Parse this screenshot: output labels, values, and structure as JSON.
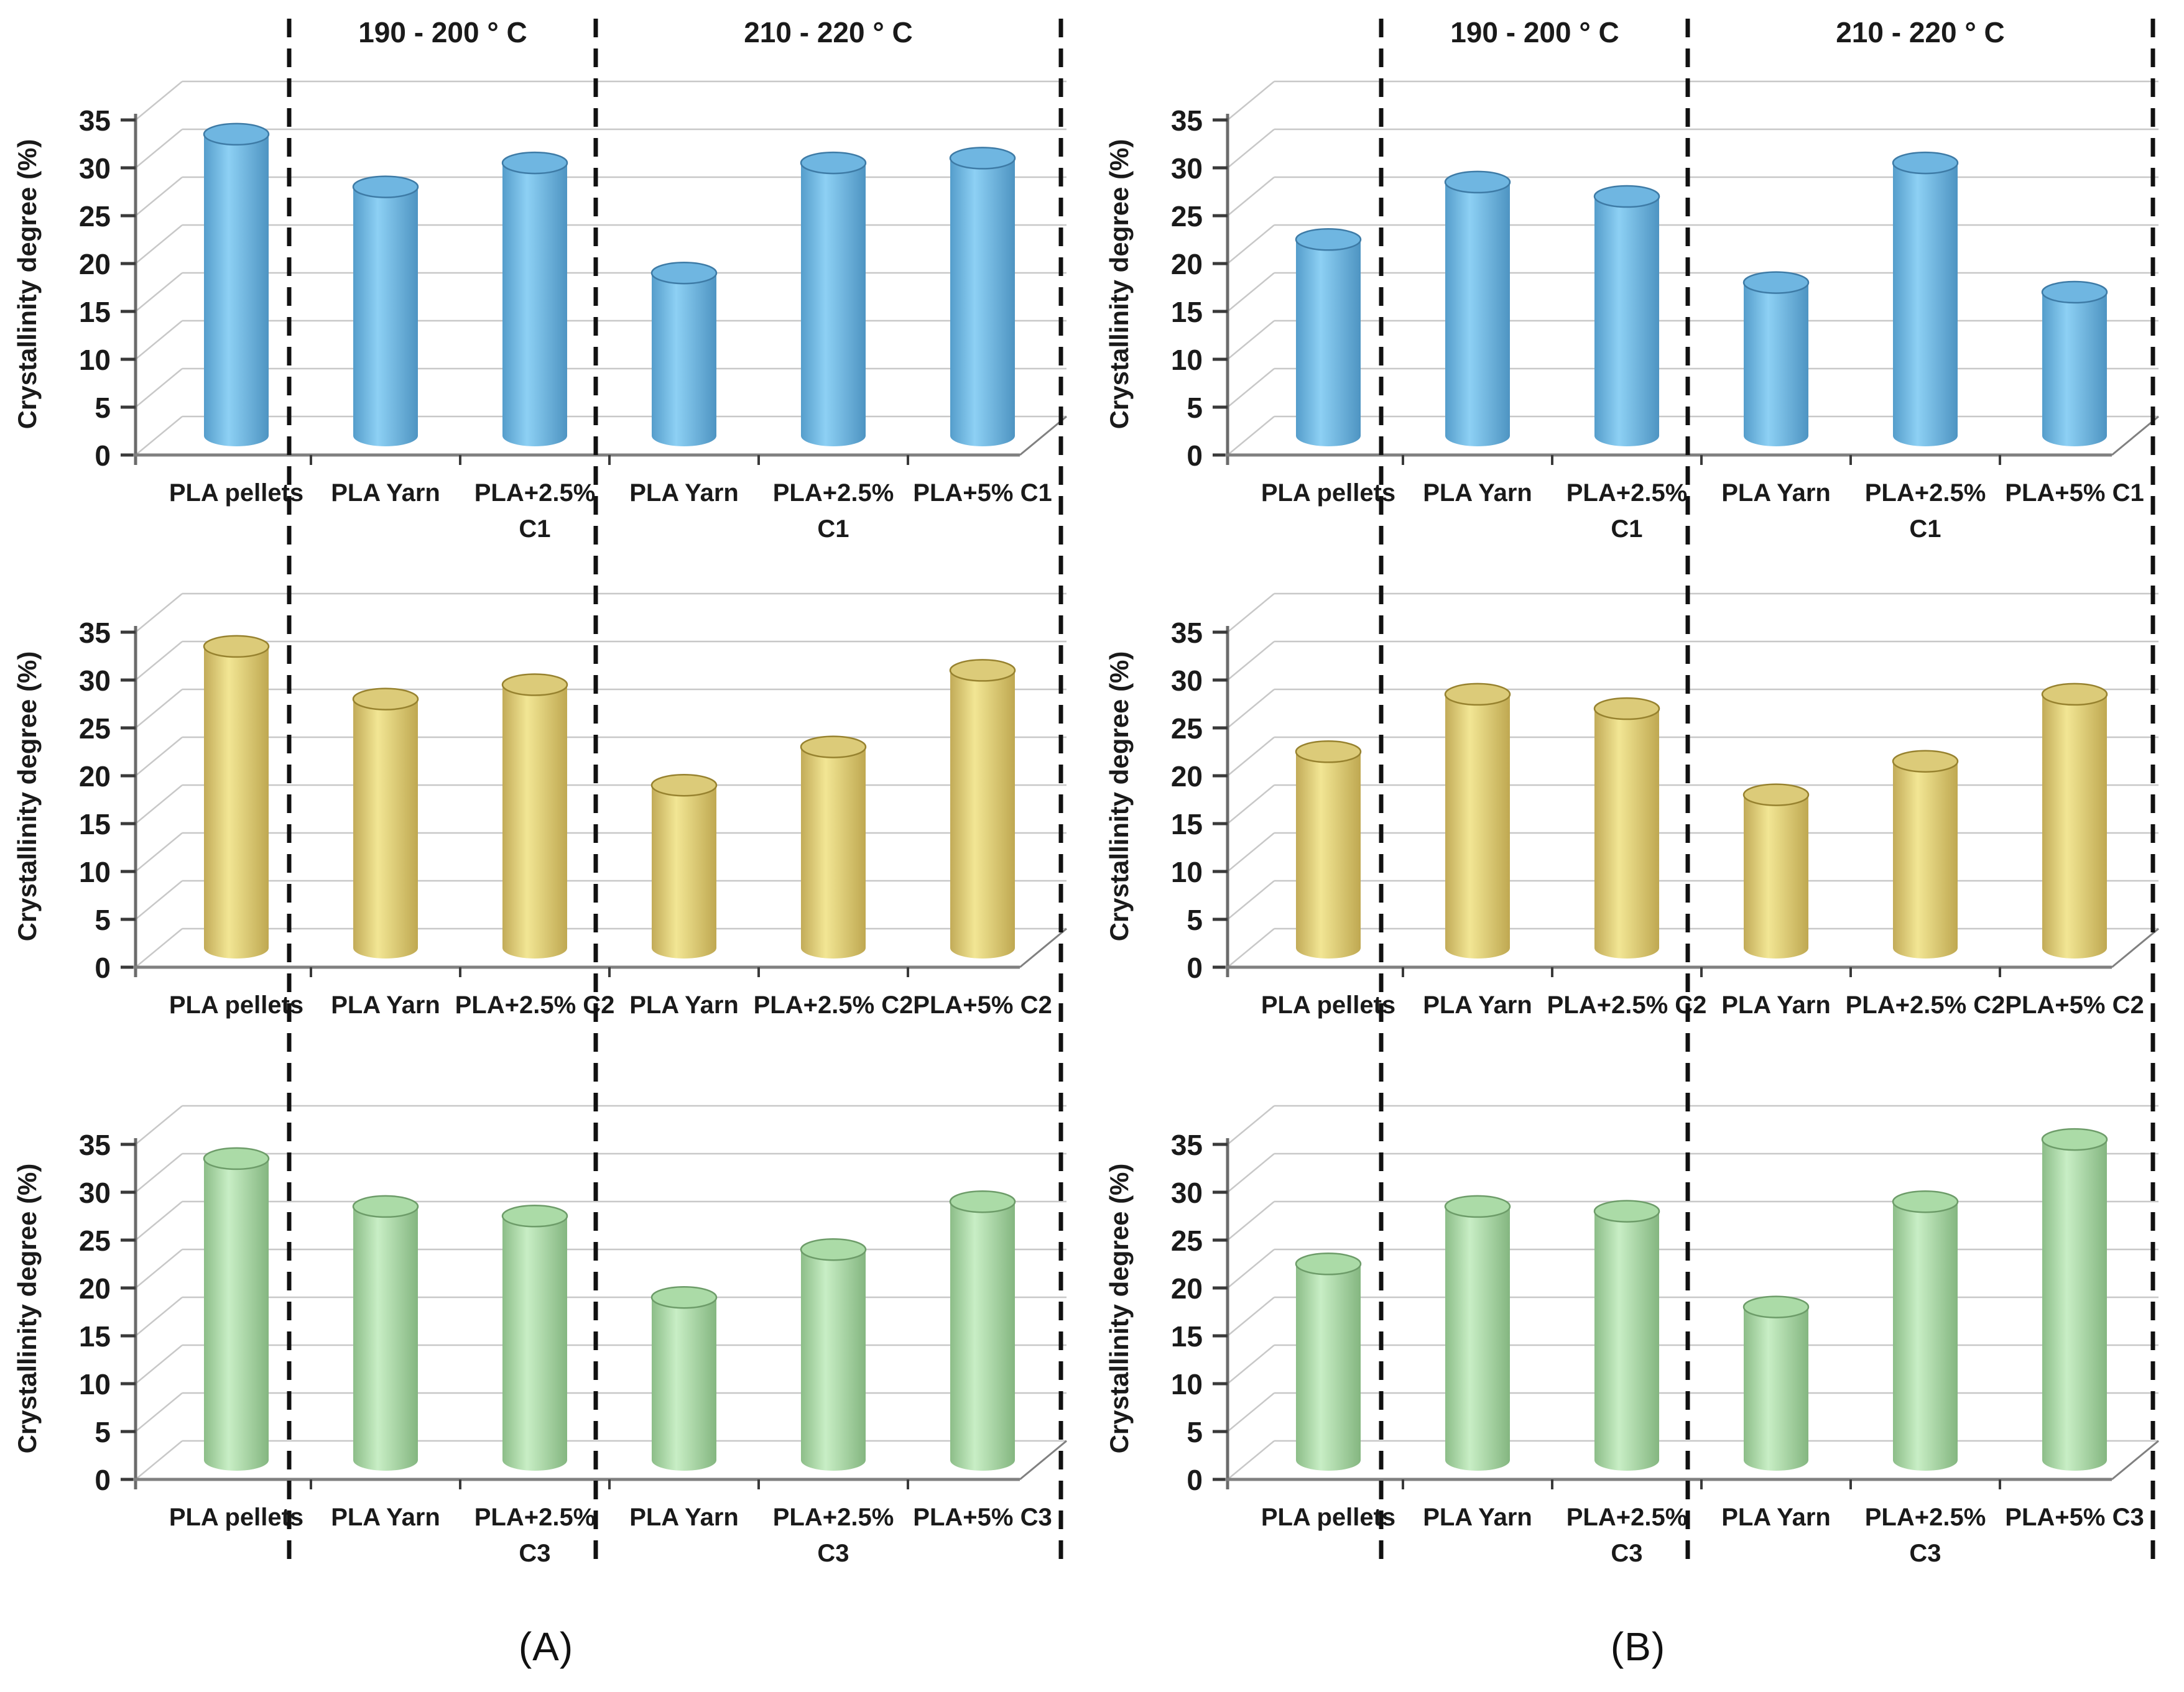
{
  "figure": {
    "caption_a": "(A)",
    "caption_b": "(B)",
    "y_axis_label": "Crystallinity degree (%)",
    "temp_headers": [
      "190 - 200 ° C",
      "210 - 220 ° C"
    ],
    "background": "#FFFFFF"
  },
  "colors": {
    "separator_line": "#111111",
    "gridline": "#C8C8C8",
    "axis_line": "#6B6B6B",
    "baseline": "#808080",
    "tick": "#3A3A3A",
    "text": "#1A1A1A",
    "blue": {
      "edge1": "#559DCB",
      "light": "#8DD0F4",
      "edge2": "#4E94C2",
      "top": "#6FB6E1",
      "top_stroke": "#3E7BA6"
    },
    "yellow": {
      "edge1": "#C2AB58",
      "light": "#F2E694",
      "edge2": "#BFA851",
      "top": "#DCCB79",
      "top_stroke": "#97822F"
    },
    "green": {
      "edge1": "#8CBD88",
      "light": "#C8EEC5",
      "edge2": "#84B680",
      "top": "#ABDBA7",
      "top_stroke": "#6D9C69"
    }
  },
  "chart_data": [
    {
      "type": "bar",
      "bar_style": "3d-cylinder",
      "panel": "A",
      "position": "top-left",
      "color_scheme": "blue",
      "ylabel": "Crystallinity degree (%)",
      "yticks": [
        0,
        5,
        10,
        15,
        20,
        25,
        30,
        35
      ],
      "ylim": [
        0,
        35
      ],
      "group_headers": [
        "190 - 200 ° C",
        "210 - 220 ° C"
      ],
      "categories": [
        [
          "PLA pellets"
        ],
        [
          "PLA Yarn"
        ],
        [
          "PLA+2.5%",
          "C1"
        ],
        [
          "PLA Yarn"
        ],
        [
          "PLA+2.5%",
          "C1"
        ],
        [
          "PLA+5% C1"
        ]
      ],
      "values": [
        31.5,
        26,
        28.5,
        17,
        28.5,
        29
      ]
    },
    {
      "type": "bar",
      "bar_style": "3d-cylinder",
      "panel": "B",
      "position": "top-right",
      "color_scheme": "blue",
      "ylabel": "Crystallinity degree (%)",
      "yticks": [
        0,
        5,
        10,
        15,
        20,
        25,
        30,
        35
      ],
      "ylim": [
        0,
        35
      ],
      "group_headers": [
        "190 - 200 ° C",
        "210 - 220 ° C"
      ],
      "categories": [
        [
          "PLA pellets"
        ],
        [
          "PLA Yarn"
        ],
        [
          "PLA+2.5%",
          "C1"
        ],
        [
          "PLA Yarn"
        ],
        [
          "PLA+2.5%",
          "C1"
        ],
        [
          "PLA+5% C1"
        ]
      ],
      "values": [
        20.5,
        26.5,
        25,
        16,
        28.5,
        15
      ]
    },
    {
      "type": "bar",
      "bar_style": "3d-cylinder",
      "panel": "A",
      "position": "middle-left",
      "color_scheme": "yellow",
      "ylabel": "Crystallinity degree (%)",
      "yticks": [
        0,
        5,
        10,
        15,
        20,
        25,
        30,
        35
      ],
      "ylim": [
        0,
        35
      ],
      "group_headers": [
        "190 - 200 ° C",
        "210 - 220 ° C"
      ],
      "categories": [
        [
          "PLA pellets"
        ],
        [
          "PLA Yarn"
        ],
        [
          "PLA+2.5% C2"
        ],
        [
          "PLA Yarn"
        ],
        [
          "PLA+2.5% C2"
        ],
        [
          "PLA+5% C2"
        ]
      ],
      "values": [
        31.5,
        26,
        27.5,
        17,
        21,
        29
      ]
    },
    {
      "type": "bar",
      "bar_style": "3d-cylinder",
      "panel": "B",
      "position": "middle-right",
      "color_scheme": "yellow",
      "ylabel": "Crystallinity degree (%)",
      "yticks": [
        0,
        5,
        10,
        15,
        20,
        25,
        30,
        35
      ],
      "ylim": [
        0,
        35
      ],
      "group_headers": [
        "190 - 200 ° C",
        "210 - 220 ° C"
      ],
      "categories": [
        [
          "PLA pellets"
        ],
        [
          "PLA Yarn"
        ],
        [
          "PLA+2.5% C2"
        ],
        [
          "PLA Yarn"
        ],
        [
          "PLA+2.5% C2"
        ],
        [
          "PLA+5% C2"
        ]
      ],
      "values": [
        20.5,
        26.5,
        25,
        16,
        19.5,
        26.5
      ]
    },
    {
      "type": "bar",
      "bar_style": "3d-cylinder",
      "panel": "A",
      "position": "bottom-left",
      "color_scheme": "green",
      "ylabel": "Crystallinity degree (%)",
      "yticks": [
        0,
        5,
        10,
        15,
        20,
        25,
        30,
        35
      ],
      "ylim": [
        0,
        35
      ],
      "group_headers": [
        "190 - 200 ° C",
        "210 - 220 ° C"
      ],
      "categories": [
        [
          "PLA pellets"
        ],
        [
          "PLA Yarn"
        ],
        [
          "PLA+2.5%",
          "C3"
        ],
        [
          "PLA Yarn"
        ],
        [
          "PLA+2.5%",
          "C3"
        ],
        [
          "PLA+5% C3"
        ]
      ],
      "values": [
        31.5,
        26.5,
        25.5,
        17,
        22,
        27
      ]
    },
    {
      "type": "bar",
      "bar_style": "3d-cylinder",
      "panel": "B",
      "position": "bottom-right",
      "color_scheme": "green",
      "ylabel": "Crystallinity degree (%)",
      "yticks": [
        0,
        5,
        10,
        15,
        20,
        25,
        30,
        35
      ],
      "ylim": [
        0,
        35
      ],
      "group_headers": [
        "190 - 200 ° C",
        "210 - 220 ° C"
      ],
      "categories": [
        [
          "PLA pellets"
        ],
        [
          "PLA Yarn"
        ],
        [
          "PLA+2.5%",
          "C3"
        ],
        [
          "PLA Yarn"
        ],
        [
          "PLA+2.5%",
          "C3"
        ],
        [
          "PLA+5% C3"
        ]
      ],
      "values": [
        20.5,
        26.5,
        26,
        16,
        27,
        33.5
      ]
    }
  ]
}
